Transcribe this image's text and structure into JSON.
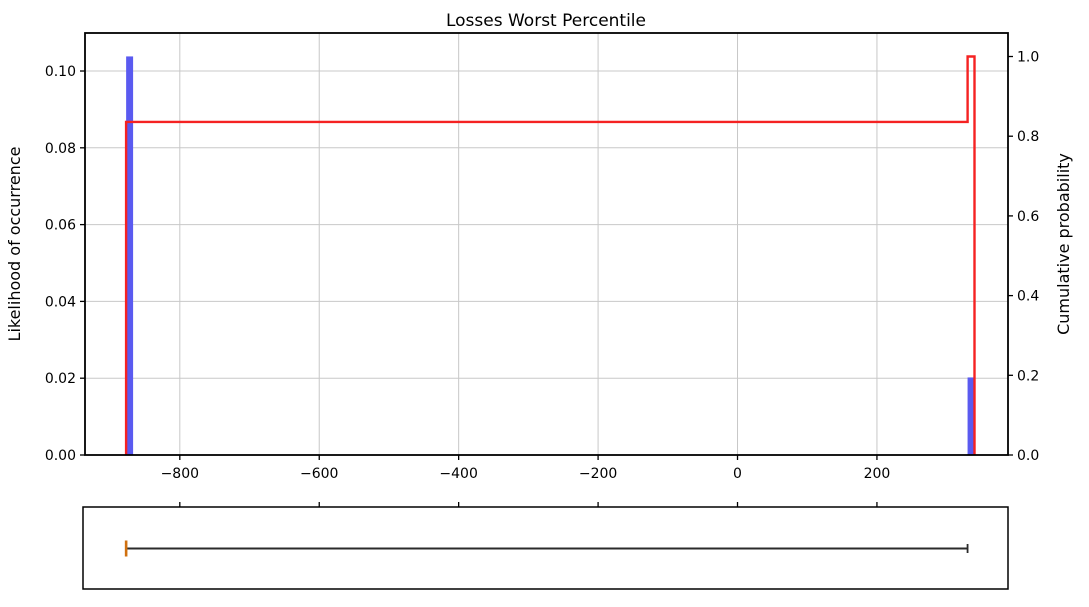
{
  "chart_data": [
    {
      "type": "bar",
      "subtype": "histogram_with_cumulative_step",
      "title": "Losses Worst Percentile",
      "xlabel": "",
      "ylabel_left": "Likelihood of occurrence",
      "ylabel_right": "Cumulative probability",
      "xlim": [
        -936,
        388
      ],
      "ylim_left": [
        0,
        0.1099
      ],
      "ylim_right": [
        0,
        1.059
      ],
      "grid": true,
      "legend": "none",
      "x_ticks": [
        -800,
        -600,
        -400,
        -200,
        0,
        200
      ],
      "x_tick_labels": [
        "−800",
        "−600",
        "−400",
        "−200",
        "0",
        "200"
      ],
      "y_ticks_left": [
        0.0,
        0.02,
        0.04,
        0.06,
        0.08,
        0.1
      ],
      "y_tick_labels_left": [
        "0.00",
        "0.02",
        "0.04",
        "0.06",
        "0.08",
        "0.10"
      ],
      "y_ticks_right": [
        0.0,
        0.2,
        0.4,
        0.6,
        0.8,
        1.0
      ],
      "y_tick_labels_right": [
        "0.0",
        "0.2",
        "0.4",
        "0.6",
        "0.8",
        "1.0"
      ],
      "bars": [
        {
          "x0": -877,
          "x1": -867,
          "height": 0.1038
        },
        {
          "x0": 330,
          "x1": 340,
          "height": 0.0202
        }
      ],
      "cumulative_steps": [
        [
          -877,
          0.0
        ],
        [
          -877,
          0.836
        ],
        [
          330,
          0.836
        ],
        [
          330,
          1.0
        ],
        [
          340,
          1.0
        ],
        [
          340,
          0.0
        ]
      ],
      "colors": {
        "bars": "#5a5af0",
        "cumulative_line": "#f52222",
        "left_axis_label": "#0000ff",
        "right_axis_label": "#ff0000",
        "grid": "#c8c8c8",
        "spines": "#000000"
      }
    },
    {
      "type": "boxplot",
      "orientation": "horizontal",
      "whisker_low": -877,
      "q1": -877,
      "median": -877,
      "q3": -877,
      "whisker_high": 330,
      "colors": {
        "median": "#d0700f",
        "whisker": "#2b2b2b"
      }
    }
  ]
}
